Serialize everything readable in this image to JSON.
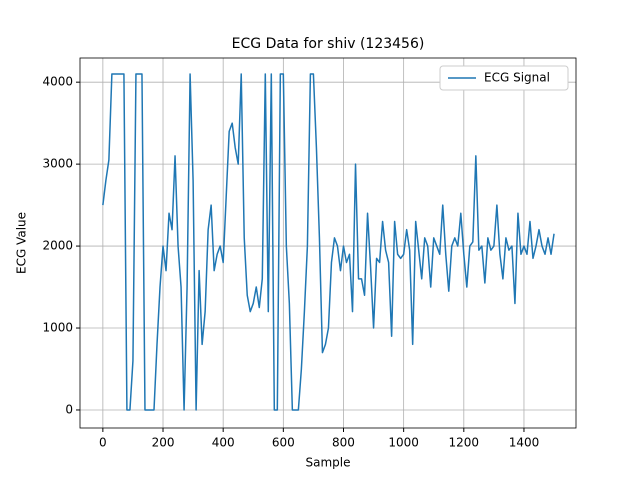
{
  "chart_data": {
    "type": "line",
    "title": "ECG Data for shiv (123456)",
    "x_label": "Sample",
    "y_label": "ECG Value",
    "x": [
      0,
      10,
      20,
      30,
      40,
      50,
      60,
      70,
      80,
      90,
      100,
      110,
      120,
      130,
      140,
      150,
      160,
      170,
      180,
      190,
      200,
      210,
      220,
      230,
      240,
      250,
      260,
      270,
      280,
      290,
      300,
      310,
      320,
      330,
      340,
      350,
      360,
      370,
      380,
      390,
      400,
      410,
      420,
      430,
      440,
      450,
      460,
      470,
      480,
      490,
      500,
      510,
      520,
      530,
      540,
      550,
      560,
      570,
      580,
      590,
      600,
      610,
      620,
      630,
      640,
      650,
      660,
      670,
      680,
      690,
      700,
      710,
      720,
      730,
      740,
      750,
      760,
      770,
      780,
      790,
      800,
      810,
      820,
      830,
      840,
      850,
      860,
      870,
      880,
      890,
      900,
      910,
      920,
      930,
      940,
      950,
      960,
      970,
      980,
      990,
      1000,
      1010,
      1020,
      1030,
      1040,
      1050,
      1060,
      1070,
      1080,
      1090,
      1100,
      1110,
      1120,
      1130,
      1140,
      1150,
      1160,
      1170,
      1180,
      1190,
      1200,
      1210,
      1220,
      1230,
      1240,
      1250,
      1260,
      1270,
      1280,
      1290,
      1300,
      1310,
      1320,
      1330,
      1340,
      1350,
      1360,
      1370,
      1380,
      1390,
      1400,
      1410,
      1420,
      1430,
      1440,
      1450,
      1460,
      1470,
      1480,
      1490,
      1500
    ],
    "series": [
      {
        "name": "ECG Signal",
        "color": "#1f77b4",
        "values": [
          2500,
          2800,
          3050,
          4100,
          4100,
          4100,
          4100,
          4100,
          0,
          0,
          600,
          4100,
          4100,
          4100,
          0,
          0,
          0,
          0,
          800,
          1500,
          2000,
          1700,
          2400,
          2200,
          3100,
          2000,
          1500,
          0,
          1500,
          4100,
          2800,
          0,
          1700,
          800,
          1200,
          2200,
          2500,
          1700,
          1900,
          2000,
          1800,
          2600,
          3400,
          3500,
          3200,
          3000,
          4100,
          2100,
          1400,
          1200,
          1300,
          1500,
          1250,
          1600,
          4100,
          1200,
          4100,
          0,
          0,
          4100,
          4100,
          2000,
          1300,
          0,
          0,
          0,
          500,
          1200,
          2000,
          4100,
          4100,
          3200,
          2100,
          700,
          800,
          1000,
          1800,
          2100,
          2000,
          1700,
          2000,
          1800,
          1900,
          1200,
          3000,
          1600,
          1600,
          1400,
          2400,
          1750,
          1000,
          1850,
          1800,
          2300,
          1950,
          1800,
          900,
          2300,
          1900,
          1850,
          1900,
          2200,
          1950,
          800,
          2300,
          1950,
          1600,
          2100,
          2000,
          1500,
          2100,
          2000,
          1900,
          2500,
          1900,
          1450,
          2000,
          2100,
          2000,
          2400,
          1900,
          1500,
          2000,
          2050,
          3100,
          1950,
          2000,
          1550,
          2100,
          1950,
          2000,
          2500,
          1900,
          1600,
          2100,
          1950,
          2000,
          1300,
          2400,
          1900,
          2000,
          1900,
          2300,
          1850,
          2000,
          2200,
          2000,
          1900,
          2100,
          1900,
          2150
        ]
      }
    ],
    "xlim": [
      -76,
      1573
    ],
    "ylim": [
      -220,
      4295
    ],
    "xticks": [
      0,
      200,
      400,
      600,
      800,
      1000,
      1200,
      1400
    ],
    "yticks": [
      0,
      1000,
      2000,
      3000,
      4000
    ],
    "grid": true,
    "legend_position": "upper right"
  }
}
